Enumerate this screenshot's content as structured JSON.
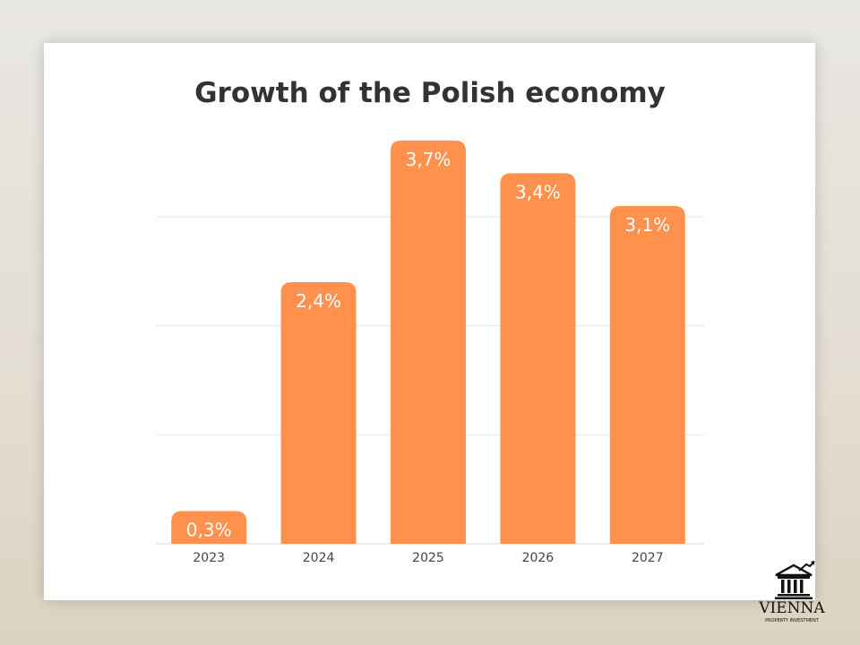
{
  "chart_data": {
    "type": "bar",
    "title": "Growth of the Polish economy",
    "categories": [
      "2023",
      "2024",
      "2025",
      "2026",
      "2027"
    ],
    "values": [
      0.3,
      2.4,
      3.7,
      3.4,
      3.1
    ],
    "value_labels": [
      "0,3%",
      "2,4%",
      "3,7%",
      "3,4%",
      "3,1%"
    ],
    "xlabel": "",
    "ylabel": "",
    "ylim": [
      0,
      3.6
    ],
    "gridlines": [
      0,
      1,
      2,
      3
    ],
    "grid": true,
    "bar_color": "#ff914d"
  },
  "logo": {
    "name": "VIENNA",
    "tagline": "PROPERTY INVESTMENT"
  }
}
